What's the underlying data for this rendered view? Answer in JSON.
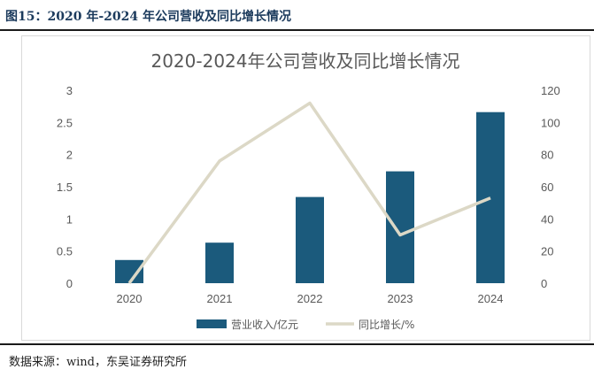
{
  "caption": "图15：2020 年-2024 年公司营收及同比增长情况",
  "source": "数据来源：wind，东吴证券研究所",
  "chart_data": {
    "type": "bar",
    "title": "2020-2024年公司营收及同比增长情况",
    "categories": [
      "2020",
      "2021",
      "2022",
      "2023",
      "2024"
    ],
    "series": [
      {
        "name": "营业收入/亿元",
        "type": "bar",
        "axis": "left",
        "color": "#1b5a7c",
        "values": [
          0.36,
          0.63,
          1.34,
          1.74,
          2.66
        ]
      },
      {
        "name": "同比增长/%",
        "type": "line",
        "axis": "right",
        "color": "#dcd8c6",
        "values": [
          0,
          76,
          112,
          30,
          53
        ]
      }
    ],
    "ylim_left": [
      0,
      3
    ],
    "yticks_left": [
      "0",
      "0.5",
      "1",
      "1.5",
      "2",
      "2.5",
      "3"
    ],
    "ylim_right": [
      0,
      120
    ],
    "yticks_right": [
      "0",
      "20",
      "40",
      "60",
      "80",
      "100",
      "120"
    ],
    "grid": false,
    "legend_position": "bottom"
  }
}
